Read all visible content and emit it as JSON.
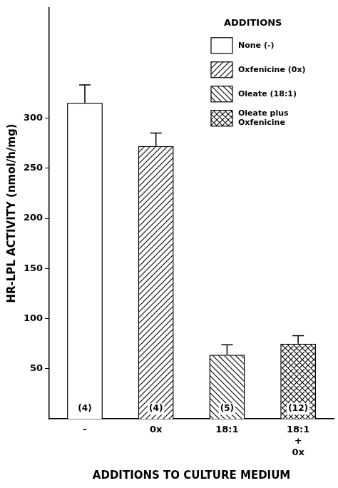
{
  "chart_data": {
    "type": "bar",
    "categories": [
      "-",
      "0x",
      "18:1",
      "18:1 + 0x"
    ],
    "values": [
      315,
      272,
      64,
      75
    ],
    "errors": [
      18,
      13,
      10,
      8
    ],
    "n_labels": [
      "(4)",
      "(4)",
      "(5)",
      "(12)"
    ],
    "color": "#000000",
    "ylabel": "HR-LPL ACTIVITY (nmol/h/mg)",
    "xlabel": "ADDITIONS TO CULTURE MEDIUM",
    "ylim": [
      0,
      410
    ],
    "yticks": [
      50,
      100,
      150,
      200,
      250,
      300
    ],
    "grid": false,
    "legend": "upper right",
    "legend_title": "ADDITIONS",
    "legend_labels": [
      "None (-)",
      "Oxfenicine (0x)",
      "Oleate (18:1)",
      "Oleate plus Oxfenicine"
    ]
  }
}
